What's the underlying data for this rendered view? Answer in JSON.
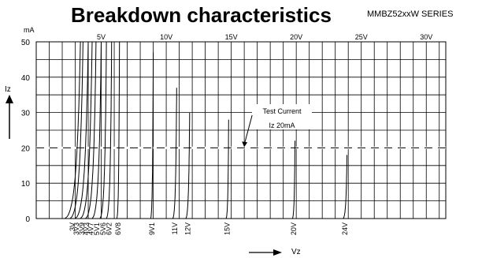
{
  "chart_data": {
    "type": "line",
    "title": "Breakdown characteristics",
    "subtitle": "MMBZ52xxW SERIES",
    "ylabel": "Iz",
    "yunit": "mA",
    "xlabel": "Vz",
    "xlim": [
      0,
      31.5
    ],
    "ylim": [
      0,
      50
    ],
    "x_top_ticks": [
      "5V",
      "10V",
      "15V",
      "20V",
      "25V",
      "30V"
    ],
    "x_top_tick_values": [
      5,
      10,
      15,
      20,
      25,
      30
    ],
    "y_ticks": [
      "0",
      "10",
      "20",
      "30",
      "40",
      "50"
    ],
    "y_tick_values": [
      0,
      10,
      20,
      30,
      40,
      50
    ],
    "grid": true,
    "reference_line": {
      "y": 20,
      "style": "dashed"
    },
    "annotation": {
      "lines": [
        "Test Current",
        "Iz 20mA"
      ],
      "target_x": 16,
      "target_y": 20
    },
    "series": [
      {
        "label": "3V",
        "x0": 2.2,
        "xmax": 3.4,
        "ymax": 50
      },
      {
        "label": "3V3",
        "x0": 2.6,
        "xmax": 3.6,
        "ymax": 50
      },
      {
        "label": "3V9",
        "x0": 3.0,
        "xmax": 4.0,
        "ymax": 50
      },
      {
        "label": "4V3",
        "x0": 3.4,
        "xmax": 4.3,
        "ymax": 50
      },
      {
        "label": "4V7",
        "x0": 3.8,
        "xmax": 4.6,
        "ymax": 50
      },
      {
        "label": "5V1",
        "x0": 4.3,
        "xmax": 5.0,
        "ymax": 50
      },
      {
        "label": "5V6",
        "x0": 4.9,
        "xmax": 5.4,
        "ymax": 50
      },
      {
        "label": "6V2",
        "x0": 5.4,
        "xmax": 5.8,
        "ymax": 50
      },
      {
        "label": "6V8",
        "x0": 6.2,
        "xmax": 6.4,
        "ymax": 50
      },
      {
        "label": "9V1",
        "x0": 8.8,
        "xmax": 9.0,
        "ymax": 47
      },
      {
        "label": "11V",
        "x0": 10.5,
        "xmax": 10.8,
        "ymax": 37
      },
      {
        "label": "12V",
        "x0": 11.5,
        "xmax": 11.8,
        "ymax": 30
      },
      {
        "label": "15V",
        "x0": 14.6,
        "xmax": 14.8,
        "ymax": 28
      },
      {
        "label": "20V",
        "x0": 19.7,
        "xmax": 19.9,
        "ymax": 22
      },
      {
        "label": "24V",
        "x0": 23.6,
        "xmax": 23.9,
        "ymax": 18
      }
    ]
  }
}
